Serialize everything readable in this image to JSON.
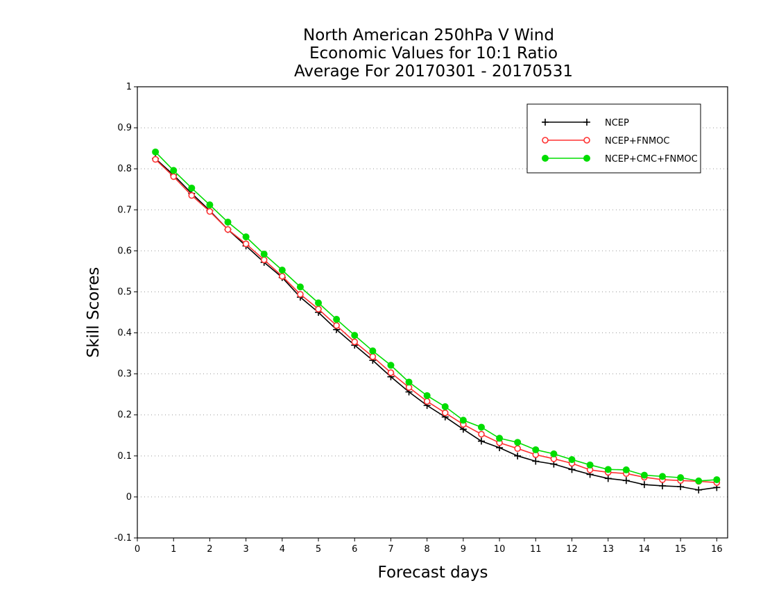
{
  "chart_data": {
    "type": "line",
    "title_lines": [
      "North American 250hPa V Wind",
      "Economic Values for 10:1 Ratio",
      "Average For 20170301 - 20170531"
    ],
    "xlabel": "Forecast days",
    "ylabel": "Skill Scores",
    "xlim": [
      0,
      16.3
    ],
    "ylim": [
      -0.1,
      1
    ],
    "xticks": [
      0,
      1,
      2,
      3,
      4,
      5,
      6,
      7,
      8,
      9,
      10,
      11,
      12,
      13,
      14,
      15,
      16
    ],
    "xtick_labels": [
      "0",
      "1",
      "2",
      "3",
      "4",
      "5",
      "6",
      "7",
      "8",
      "9",
      "10",
      "11",
      "12",
      "13",
      "14",
      "15",
      "16"
    ],
    "yticks": [
      -0.1,
      0,
      0.1,
      0.2,
      0.3,
      0.4,
      0.5,
      0.6,
      0.7,
      0.8,
      0.9,
      1
    ],
    "ytick_labels": [
      "-0.1",
      "0",
      "0.1",
      "0.2",
      "0.3",
      "0.4",
      "0.5",
      "0.6",
      "0.7",
      "0.8",
      "0.9",
      "1"
    ],
    "grid": "horizontal dotted",
    "legend_position": "top-right",
    "x": [
      0.5,
      1,
      1.5,
      2,
      2.5,
      3,
      3.5,
      4,
      4.5,
      5,
      5.5,
      6,
      6.5,
      7,
      7.5,
      8,
      8.5,
      9,
      9.5,
      10,
      10.5,
      11,
      11.5,
      12,
      12.5,
      13,
      13.5,
      14,
      14.5,
      15,
      15.5,
      16
    ],
    "series": [
      {
        "name": "NCEP",
        "color": "#000000",
        "marker": "plus",
        "values": [
          0.825,
          0.785,
          0.74,
          0.698,
          0.652,
          0.612,
          0.572,
          0.535,
          0.487,
          0.45,
          0.408,
          0.37,
          0.333,
          0.293,
          0.256,
          0.223,
          0.195,
          0.165,
          0.136,
          0.12,
          0.1,
          0.087,
          0.08,
          0.067,
          0.055,
          0.045,
          0.04,
          0.03,
          0.027,
          0.025,
          0.017,
          0.023
        ]
      },
      {
        "name": "NCEP+FNMOC",
        "color": "#ff3030",
        "marker": "open-circle",
        "values": [
          0.823,
          0.781,
          0.735,
          0.696,
          0.652,
          0.617,
          0.578,
          0.538,
          0.494,
          0.458,
          0.418,
          0.378,
          0.342,
          0.303,
          0.267,
          0.233,
          0.205,
          0.177,
          0.153,
          0.132,
          0.118,
          0.103,
          0.093,
          0.082,
          0.066,
          0.06,
          0.057,
          0.048,
          0.042,
          0.04,
          0.038,
          0.035
        ]
      },
      {
        "name": "NCEP+CMC+FNMOC",
        "color": "#00dd00",
        "marker": "filled-circle",
        "values": [
          0.841,
          0.796,
          0.753,
          0.712,
          0.67,
          0.634,
          0.592,
          0.553,
          0.512,
          0.473,
          0.433,
          0.394,
          0.356,
          0.321,
          0.28,
          0.247,
          0.22,
          0.187,
          0.17,
          0.143,
          0.133,
          0.115,
          0.105,
          0.091,
          0.078,
          0.067,
          0.066,
          0.053,
          0.05,
          0.047,
          0.039,
          0.042
        ]
      }
    ]
  }
}
